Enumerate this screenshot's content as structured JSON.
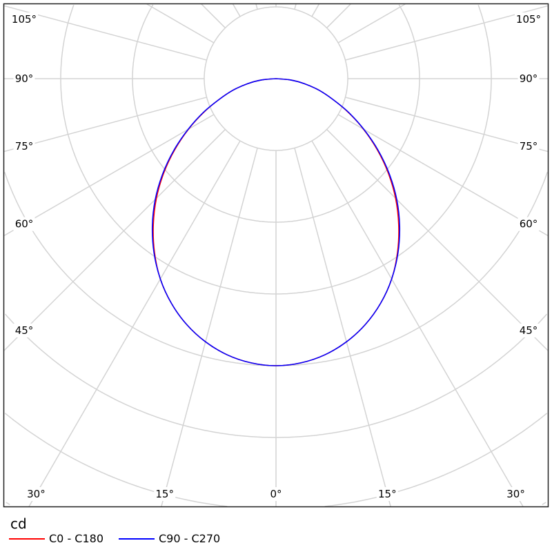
{
  "chart_data": {
    "type": "polar",
    "unit_label": "cd",
    "angle_labels": [
      "105°",
      "90°",
      "75°",
      "60°",
      "45°",
      "30°",
      "15°",
      "0°"
    ],
    "angle_label_values": [
      105,
      90,
      75,
      60,
      45,
      30,
      15,
      0
    ],
    "radial_grid_step_deg": 15,
    "rings": 7,
    "grid": true,
    "legend_position": "bottom-left",
    "angles_deg": [
      0,
      5,
      10,
      15,
      20,
      25,
      30,
      35,
      40,
      45,
      50,
      55,
      60,
      65,
      70,
      75,
      80,
      85,
      90
    ],
    "series": [
      {
        "name": "C0 - C180",
        "color": "#ff0000",
        "relative_intensity": [
          1.0,
          0.994,
          0.977,
          0.949,
          0.911,
          0.863,
          0.806,
          0.738,
          0.665,
          0.589,
          0.51,
          0.43,
          0.352,
          0.278,
          0.21,
          0.155,
          0.1,
          0.05,
          0.0
        ]
      },
      {
        "name": "C90 - C270",
        "color": "#0000ff",
        "relative_intensity": [
          1.0,
          0.994,
          0.977,
          0.949,
          0.911,
          0.863,
          0.806,
          0.741,
          0.67,
          0.595,
          0.515,
          0.434,
          0.354,
          0.28,
          0.21,
          0.155,
          0.1,
          0.05,
          0.0
        ]
      }
    ]
  }
}
